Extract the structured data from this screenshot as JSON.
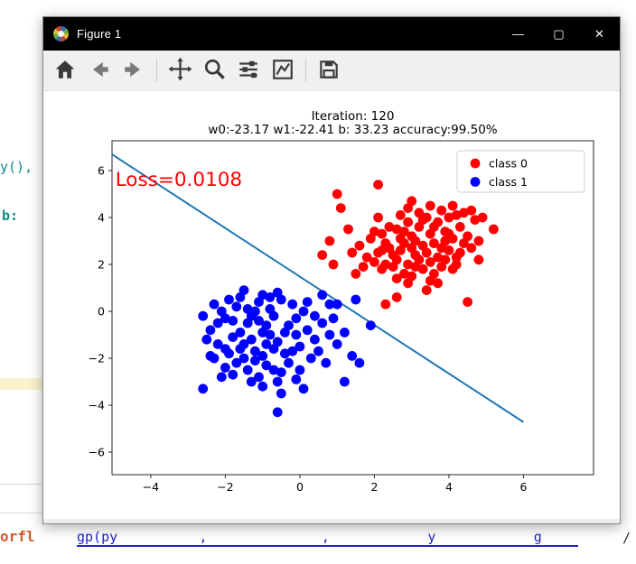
{
  "window": {
    "title": "Figure 1",
    "icon": "matplotlib-logo",
    "controls": {
      "minimize": "—",
      "maximize": "▢",
      "close": "✕"
    }
  },
  "toolbar": {
    "buttons": [
      {
        "id": "home",
        "icon": "home-icon"
      },
      {
        "id": "back",
        "icon": "back-arrow-icon"
      },
      {
        "id": "forward",
        "icon": "forward-arrow-icon"
      },
      {
        "id": "pan",
        "icon": "pan-arrows-icon"
      },
      {
        "id": "zoom",
        "icon": "zoom-magnifier-icon"
      },
      {
        "id": "subplots",
        "icon": "subplots-sliders-icon"
      },
      {
        "id": "customize",
        "icon": "customize-chart-icon"
      },
      {
        "id": "save",
        "icon": "save-floppy-icon"
      }
    ]
  },
  "background": {
    "left_code_top": "y(),",
    "left_code_mid": "b:",
    "bottom_left_fragment": "orfl",
    "bottom_blue_fragment": "gp(py          ,              ,            y            g",
    "bottom_right_fragment": "/",
    "highlight_color": "#faf3cd"
  },
  "chart_data": {
    "type": "scatter",
    "title": "Iteration: 120",
    "subtitle": "w0:-23.17 w1:-22.41 b: 33.23 accuracy:99.50%",
    "annotation": {
      "text": "Loss=0.0108",
      "color": "#ff0000",
      "x": -4.95,
      "y": 5.35
    },
    "xlim": [
      -5.04,
      7.88
    ],
    "ylim": [
      -6.96,
      7.27
    ],
    "xticks": [
      -4,
      -2,
      0,
      2,
      4,
      6
    ],
    "yticks": [
      -6,
      -4,
      -2,
      0,
      2,
      4,
      6
    ],
    "grid": false,
    "legend": {
      "position": "upper right",
      "entries": [
        {
          "label": "class 0",
          "color": "#ff0000"
        },
        {
          "label": "class 1",
          "color": "#0000ff"
        }
      ]
    },
    "decision_line": {
      "color": "#1f77b4",
      "points": [
        [
          -5.04,
          6.69
        ],
        [
          6.0,
          -4.72
        ]
      ]
    },
    "series": [
      {
        "name": "class 0",
        "color": "#ff0000",
        "points": [
          [
            3.1,
            2.4
          ],
          [
            2.8,
            2.9
          ],
          [
            3.5,
            2.1
          ],
          [
            2.2,
            3.3
          ],
          [
            4.0,
            2.6
          ],
          [
            3.3,
            1.8
          ],
          [
            2.6,
            2.2
          ],
          [
            3.9,
            3.4
          ],
          [
            2.9,
            3.8
          ],
          [
            3.6,
            2.9
          ],
          [
            2.4,
            2.7
          ],
          [
            4.2,
            2.3
          ],
          [
            3.0,
            1.5
          ],
          [
            2.7,
            3.1
          ],
          [
            3.8,
            1.9
          ],
          [
            4.4,
            2.9
          ],
          [
            2.1,
            2.5
          ],
          [
            3.2,
            3.6
          ],
          [
            2.5,
            1.9
          ],
          [
            3.7,
            3.8
          ],
          [
            4.1,
            3.1
          ],
          [
            2.9,
            2.0
          ],
          [
            3.4,
            2.5
          ],
          [
            2.3,
            2.9
          ],
          [
            4.3,
            3.6
          ],
          [
            3.0,
            3.2
          ],
          [
            2.6,
            3.5
          ],
          [
            3.9,
            2.2
          ],
          [
            4.6,
            2.7
          ],
          [
            2.8,
            1.6
          ],
          [
            3.3,
            2.8
          ],
          [
            2.0,
            2.1
          ],
          [
            4.0,
            4.0
          ],
          [
            3.5,
            3.3
          ],
          [
            2.2,
            1.8
          ],
          [
            4.5,
            3.2
          ],
          [
            3.1,
            1.9
          ],
          [
            2.7,
            2.6
          ],
          [
            3.8,
            2.7
          ],
          [
            3.2,
            4.2
          ],
          [
            2.4,
            3.6
          ],
          [
            4.2,
            4.1
          ],
          [
            3.6,
            1.6
          ],
          [
            2.9,
            4.4
          ],
          [
            4.8,
            3.0
          ],
          [
            1.8,
            2.3
          ],
          [
            3.4,
            4.0
          ],
          [
            2.1,
            4.0
          ],
          [
            4.7,
            3.9
          ],
          [
            3.0,
            2.7
          ],
          [
            3.7,
            2.3
          ],
          [
            2.5,
            2.4
          ],
          [
            4.4,
            4.2
          ],
          [
            1.6,
            2.8
          ],
          [
            3.9,
            3.0
          ],
          [
            2.8,
            3.4
          ],
          [
            3.5,
            1.3
          ],
          [
            4.1,
            1.8
          ],
          [
            2.3,
            2.0
          ],
          [
            3.2,
            2.2
          ],
          [
            1.9,
            3.1
          ],
          [
            4.9,
            4.0
          ],
          [
            3.6,
            3.6
          ],
          [
            2.6,
            1.4
          ],
          [
            4.3,
            2.5
          ],
          [
            3.1,
            3.0
          ],
          [
            2.0,
            3.4
          ],
          [
            3.8,
            4.3
          ],
          [
            4.6,
            4.3
          ],
          [
            2.2,
            2.6
          ],
          [
            3.3,
            3.9
          ],
          [
            2.9,
            1.2
          ],
          [
            4.0,
            3.3
          ],
          [
            1.4,
            2.5
          ],
          [
            3.5,
            4.5
          ],
          [
            2.7,
            4.1
          ],
          [
            4.2,
            2.0
          ],
          [
            3.0,
            4.7
          ],
          [
            0.9,
            2.0
          ],
          [
            0.6,
            2.4
          ],
          [
            5.2,
            3.5
          ],
          [
            2.1,
            5.4
          ],
          [
            1.0,
            5.0
          ],
          [
            4.5,
            0.4
          ],
          [
            1.3,
            3.5
          ],
          [
            1.1,
            4.4
          ],
          [
            2.3,
            0.3
          ],
          [
            1.5,
            1.6
          ],
          [
            0.8,
            3.0
          ],
          [
            3.4,
            0.9
          ],
          [
            2.6,
            0.6
          ],
          [
            4.8,
            2.2
          ],
          [
            1.7,
            1.9
          ],
          [
            3.7,
            1.2
          ],
          [
            4.1,
            4.5
          ]
        ]
      },
      {
        "name": "class 1",
        "color": "#0000ff",
        "points": [
          [
            -1.0,
            -0.9
          ],
          [
            -1.4,
            -0.5
          ],
          [
            -0.6,
            -1.3
          ],
          [
            -1.8,
            -1.1
          ],
          [
            -0.3,
            -0.6
          ],
          [
            -1.2,
            -1.7
          ],
          [
            -2.0,
            -0.3
          ],
          [
            -0.8,
            0.1
          ],
          [
            -1.5,
            -2.0
          ],
          [
            -0.1,
            -1.0
          ],
          [
            -2.2,
            -1.4
          ],
          [
            -0.9,
            -2.3
          ],
          [
            -1.7,
            0.2
          ],
          [
            -0.4,
            -1.8
          ],
          [
            -1.1,
            0.4
          ],
          [
            -2.4,
            -0.8
          ],
          [
            -0.7,
            -0.2
          ],
          [
            -1.3,
            -1.2
          ],
          [
            0.2,
            -0.8
          ],
          [
            -1.9,
            -1.8
          ],
          [
            -0.5,
            -2.6
          ],
          [
            -1.6,
            -0.9
          ],
          [
            0.0,
            -1.5
          ],
          [
            -2.1,
            0.0
          ],
          [
            -0.2,
            0.3
          ],
          [
            -1.0,
            -1.9
          ],
          [
            -2.3,
            -2.0
          ],
          [
            0.4,
            -1.2
          ],
          [
            -1.4,
            -2.5
          ],
          [
            -0.8,
            -1.0
          ],
          [
            -1.8,
            -0.4
          ],
          [
            0.1,
            0.0
          ],
          [
            -0.6,
            -3.0
          ],
          [
            -2.0,
            -2.4
          ],
          [
            -1.2,
            0.0
          ],
          [
            0.6,
            -0.5
          ],
          [
            -0.9,
            -0.6
          ],
          [
            -1.6,
            -1.6
          ],
          [
            0.3,
            -2.0
          ],
          [
            -2.5,
            -1.2
          ],
          [
            -0.3,
            -2.2
          ],
          [
            -1.1,
            -2.8
          ],
          [
            0.8,
            -1.0
          ],
          [
            -1.9,
            0.5
          ],
          [
            -0.5,
            0.5
          ],
          [
            -1.3,
            -0.2
          ],
          [
            0.5,
            -1.7
          ],
          [
            -2.2,
            -0.5
          ],
          [
            -0.7,
            -1.6
          ],
          [
            -1.5,
            -1.4
          ],
          [
            0.9,
            -0.3
          ],
          [
            -0.1,
            -0.3
          ],
          [
            -1.0,
            0.7
          ],
          [
            -1.7,
            -2.2
          ],
          [
            0.0,
            -2.5
          ],
          [
            -2.6,
            -0.2
          ],
          [
            -0.4,
            -0.9
          ],
          [
            -1.2,
            -2.1
          ],
          [
            0.7,
            -2.2
          ],
          [
            -2.0,
            -1.6
          ],
          [
            -0.8,
            0.6
          ],
          [
            -1.4,
            0.1
          ],
          [
            1.0,
            -1.4
          ],
          [
            -0.2,
            -1.7
          ],
          [
            -1.0,
            -3.2
          ],
          [
            -1.8,
            -2.7
          ],
          [
            0.2,
            0.4
          ],
          [
            -0.6,
            0.8
          ],
          [
            -1.6,
            0.6
          ],
          [
            1.2,
            -0.9
          ],
          [
            -2.4,
            -1.9
          ],
          [
            -0.9,
            -1.4
          ],
          [
            -1.3,
            -3.0
          ],
          [
            0.4,
            -0.2
          ],
          [
            -0.1,
            -2.9
          ],
          [
            -1.1,
            -0.4
          ],
          [
            1.4,
            -1.9
          ],
          [
            -2.1,
            -2.8
          ],
          [
            -0.5,
            -3.5
          ],
          [
            -1.5,
            0.9
          ],
          [
            1.6,
            -2.2
          ],
          [
            0.1,
            -3.3
          ],
          [
            -0.7,
            -2.5
          ],
          [
            -2.6,
            -3.3
          ],
          [
            -0.6,
            -4.3
          ],
          [
            1.5,
            0.5
          ],
          [
            1.9,
            -0.6
          ],
          [
            1.2,
            -3.0
          ],
          [
            0.6,
            0.7
          ],
          [
            -2.3,
            0.3
          ],
          [
            0.8,
            0.3
          ],
          [
            1.0,
            0.3
          ]
        ]
      }
    ]
  }
}
